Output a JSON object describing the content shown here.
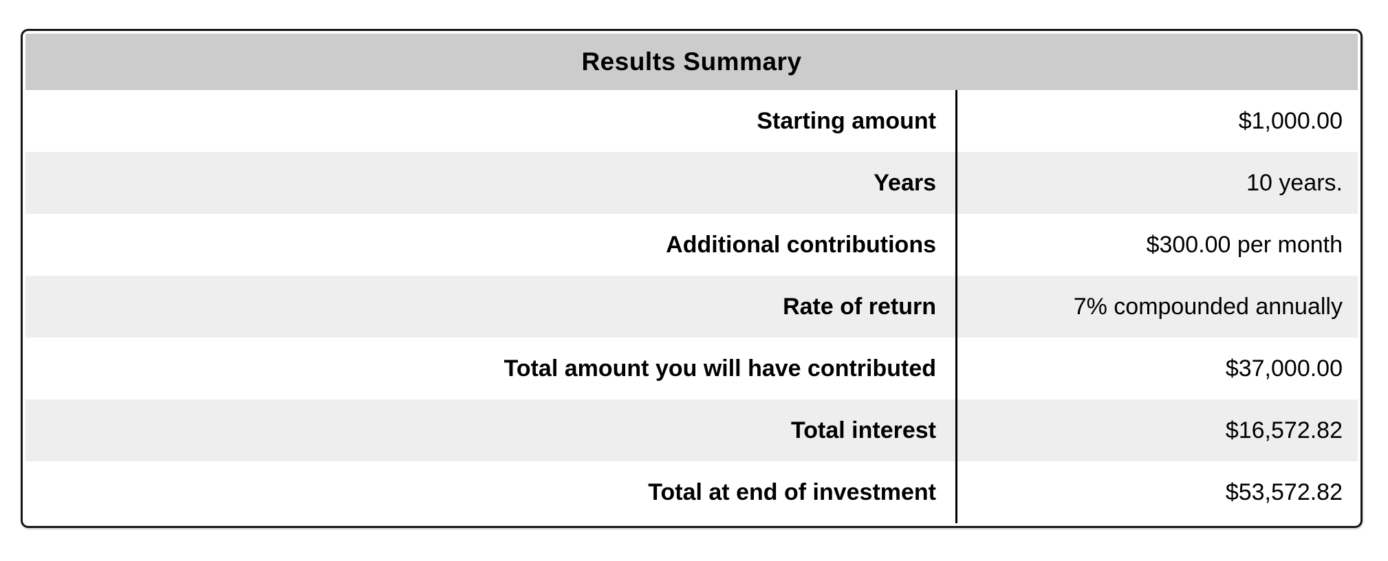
{
  "table": {
    "title": "Results Summary",
    "rows": [
      {
        "label": "Starting amount",
        "value": "$1,000.00"
      },
      {
        "label": "Years",
        "value": "10 years."
      },
      {
        "label": "Additional contributions",
        "value": "$300.00 per month"
      },
      {
        "label": "Rate of return",
        "value": "7% compounded annually"
      },
      {
        "label": "Total amount you will have contributed",
        "value": "$37,000.00"
      },
      {
        "label": "Total interest",
        "value": "$16,572.82"
      },
      {
        "label": "Total at end of investment",
        "value": "$53,572.82"
      }
    ],
    "colors": {
      "header_bg": "#cccccc",
      "stripe_bg": "#eeeeee",
      "row_bg": "#ffffff",
      "border": "#151515",
      "divider": "#000000",
      "text": "#000000"
    }
  }
}
